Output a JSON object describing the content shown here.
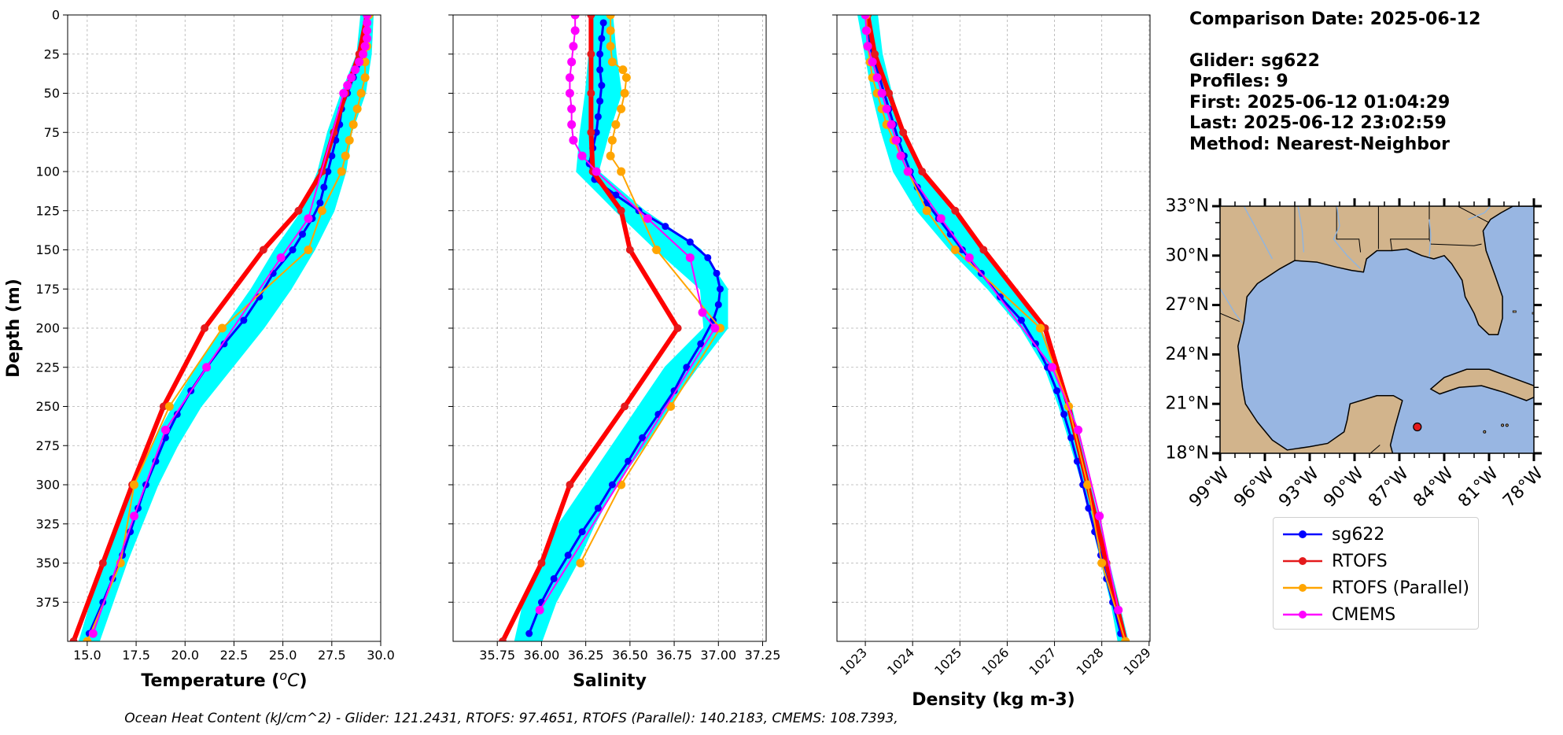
{
  "header": {
    "comparison_date": "Comparison Date: 2025-06-12",
    "glider": "Glider: sg622",
    "profiles": "Profiles: 9",
    "first": "First: 2025-06-12 01:04:29",
    "last": "Last: 2025-06-12 23:02:59",
    "method": "Method: Nearest-Neighbor"
  },
  "footer": "Ocean Heat Content (kJ/cm^2) - Glider: 121.2431,  RTOFS: 97.4651,  RTOFS (Parallel): 140.2183,  CMEMS: 108.7393,",
  "legend": {
    "items": [
      {
        "label": "sg622",
        "color": "#0000ff"
      },
      {
        "label": "RTOFS",
        "color": "#ff0000"
      },
      {
        "label": "RTOFS (Parallel)",
        "color": "#ffa500"
      },
      {
        "label": "CMEMS",
        "color": "#ff00ff"
      }
    ]
  },
  "map": {
    "lat_labels": [
      "33°N",
      "30°N",
      "27°N",
      "24°N",
      "21°N",
      "18°N"
    ],
    "lon_labels": [
      "99°W",
      "96°W",
      "93°W",
      "90°W",
      "87°W",
      "84°W",
      "81°W",
      "78°W"
    ],
    "land_color": "#d2b48c",
    "water_color": "#98b6e2",
    "glider_marker": {
      "lon": -85.8,
      "lat": 19.6,
      "color": "#e41a1c"
    }
  },
  "chart_data": [
    {
      "type": "line",
      "xlabel": "Temperature (°C)",
      "ylabel": "Depth (m)",
      "xlim": [
        14,
        30
      ],
      "ylim": [
        400,
        0
      ],
      "x_ticks": [
        15.0,
        17.5,
        20.0,
        22.5,
        25.0,
        27.5,
        30.0
      ],
      "x_tick_labels": [
        "15.0",
        "17.5",
        "20.0",
        "22.5",
        "25.0",
        "27.5",
        "30.0"
      ],
      "y_ticks": [
        0,
        25,
        50,
        75,
        100,
        125,
        150,
        175,
        200,
        225,
        250,
        275,
        300,
        325,
        350,
        375
      ],
      "y_tick_labels": [
        "0",
        "25",
        "50",
        "75",
        "100",
        "125",
        "150",
        "175",
        "200",
        "225",
        "250",
        "275",
        "300",
        "325",
        "350",
        "375"
      ],
      "grid": true,
      "envelope": {
        "color": "#00ffff",
        "depth": [
          0,
          25,
          50,
          75,
          100,
          125,
          150,
          175,
          200,
          225,
          250,
          275,
          300,
          325,
          350,
          375,
          400
        ],
        "min": [
          29.0,
          28.8,
          28.0,
          27.3,
          26.8,
          26.0,
          24.6,
          23.4,
          22.0,
          20.6,
          19.4,
          18.3,
          17.4,
          16.6,
          15.9,
          15.2,
          14.6
        ],
        "max": [
          29.6,
          29.5,
          29.2,
          28.5,
          28.2,
          27.6,
          26.6,
          25.4,
          24.0,
          22.4,
          20.8,
          19.6,
          18.6,
          17.8,
          17.0,
          16.3,
          15.6
        ]
      },
      "series": [
        {
          "name": "sg622",
          "color": "#0000ff",
          "width": 3,
          "marker": 4.5,
          "depth": [
            0,
            10,
            20,
            30,
            40,
            50,
            60,
            70,
            80,
            90,
            100,
            110,
            120,
            130,
            140,
            150,
            165,
            180,
            195,
            210,
            225,
            240,
            255,
            270,
            285,
            300,
            315,
            330,
            345,
            360,
            375,
            395
          ],
          "values": [
            29.3,
            29.3,
            29.2,
            29.0,
            28.6,
            28.3,
            28.0,
            27.9,
            27.7,
            27.5,
            27.3,
            27.1,
            26.9,
            26.5,
            26.0,
            25.5,
            24.5,
            23.8,
            23.0,
            22.0,
            21.1,
            20.3,
            19.6,
            19.0,
            18.5,
            18.0,
            17.6,
            17.2,
            16.8,
            16.3,
            15.8,
            15.1
          ]
        },
        {
          "name": "RTOFS",
          "color": "#ff0000",
          "width": 6,
          "marker": 5,
          "depth": [
            0,
            25,
            50,
            75,
            100,
            125,
            150,
            200,
            250,
            300,
            350,
            400
          ],
          "values": [
            29.3,
            28.9,
            28.2,
            27.6,
            27.0,
            25.8,
            24.0,
            21.0,
            18.9,
            17.3,
            15.8,
            14.3
          ]
        },
        {
          "name": "RTOFS (Parallel)",
          "color": "#ffa500",
          "width": 2,
          "marker": 5.5,
          "depth": [
            0,
            10,
            20,
            30,
            40,
            50,
            60,
            70,
            80,
            90,
            100,
            125,
            150,
            200,
            250,
            300,
            350,
            400
          ],
          "values": [
            29.4,
            29.3,
            29.3,
            29.2,
            29.2,
            29.0,
            28.8,
            28.6,
            28.4,
            28.2,
            28.0,
            27.0,
            26.3,
            21.9,
            19.2,
            17.4,
            16.7,
            15.0
          ]
        },
        {
          "name": "CMEMS",
          "color": "#ff00ff",
          "width": 2,
          "marker": 5.5,
          "depth": [
            0,
            5,
            10,
            15,
            20,
            25,
            30,
            35,
            40,
            45,
            50,
            130,
            155,
            225,
            265,
            320,
            395
          ],
          "values": [
            29.3,
            29.3,
            29.3,
            29.3,
            29.2,
            29.1,
            28.9,
            28.7,
            28.5,
            28.3,
            28.1,
            26.3,
            24.9,
            21.1,
            19.0,
            17.4,
            15.3
          ]
        }
      ]
    },
    {
      "type": "line",
      "xlabel": "Salinity",
      "ylim": [
        400,
        0
      ],
      "xlim": [
        35.5,
        37.27
      ],
      "x_ticks": [
        35.75,
        36.0,
        36.25,
        36.5,
        36.75,
        37.0,
        37.25
      ],
      "x_tick_labels": [
        "35.75",
        "36.00",
        "36.25",
        "36.50",
        "36.75",
        "37.00",
        "37.25"
      ],
      "y_ticks": [
        0,
        25,
        50,
        75,
        100,
        125,
        150,
        175,
        200,
        225,
        250,
        275,
        300,
        325,
        350,
        375
      ],
      "grid": true,
      "envelope": {
        "color": "#00ffff",
        "depth": [
          0,
          25,
          50,
          75,
          100,
          125,
          150,
          175,
          200,
          225,
          250,
          275,
          300,
          325,
          350,
          375,
          400
        ],
        "min": [
          36.3,
          36.27,
          36.25,
          36.22,
          36.2,
          36.42,
          36.65,
          36.9,
          36.92,
          36.7,
          36.55,
          36.4,
          36.25,
          36.1,
          36.0,
          35.9,
          35.85
        ],
        "max": [
          36.4,
          36.42,
          36.45,
          36.38,
          36.32,
          36.58,
          36.9,
          37.05,
          37.05,
          36.88,
          36.72,
          36.58,
          36.42,
          36.3,
          36.2,
          36.08,
          36.0
        ]
      },
      "series": [
        {
          "name": "sg622",
          "color": "#0000ff",
          "width": 3,
          "marker": 4.5,
          "depth": [
            5,
            15,
            25,
            35,
            45,
            55,
            65,
            75,
            85,
            95,
            105,
            115,
            125,
            135,
            145,
            155,
            165,
            175,
            185,
            195,
            210,
            225,
            240,
            255,
            270,
            285,
            300,
            315,
            330,
            345,
            360,
            375,
            395
          ],
          "values": [
            36.35,
            36.34,
            36.33,
            36.33,
            36.34,
            36.33,
            36.32,
            36.31,
            36.29,
            36.27,
            36.3,
            36.42,
            36.55,
            36.7,
            36.84,
            36.94,
            36.99,
            37.01,
            37.0,
            36.97,
            36.9,
            36.82,
            36.75,
            36.66,
            36.57,
            36.49,
            36.4,
            36.32,
            36.23,
            36.15,
            36.07,
            36.0,
            35.93
          ]
        },
        {
          "name": "RTOFS",
          "color": "#ff0000",
          "width": 6,
          "marker": 5,
          "depth": [
            0,
            25,
            50,
            75,
            100,
            125,
            150,
            200,
            250,
            300,
            350,
            400
          ],
          "values": [
            36.28,
            36.28,
            36.28,
            36.28,
            36.29,
            36.45,
            36.5,
            36.77,
            36.47,
            36.16,
            36.0,
            35.78
          ]
        },
        {
          "name": "RTOFS (Parallel)",
          "color": "#ffa500",
          "width": 2,
          "marker": 5.5,
          "depth": [
            0,
            10,
            20,
            30,
            35,
            40,
            50,
            60,
            70,
            80,
            90,
            100,
            150,
            200,
            250,
            300,
            350
          ],
          "values": [
            36.39,
            36.39,
            36.39,
            36.4,
            36.46,
            36.48,
            36.47,
            36.45,
            36.42,
            36.4,
            36.39,
            36.45,
            36.65,
            37.01,
            36.73,
            36.45,
            36.22
          ]
        },
        {
          "name": "CMEMS",
          "color": "#ff00ff",
          "width": 2,
          "marker": 5.5,
          "depth": [
            0,
            10,
            20,
            30,
            40,
            50,
            60,
            70,
            80,
            90,
            100,
            130,
            155,
            190,
            200,
            380
          ],
          "values": [
            36.19,
            36.19,
            36.18,
            36.17,
            36.16,
            36.16,
            36.17,
            36.17,
            36.18,
            36.23,
            36.31,
            36.6,
            36.84,
            36.91,
            36.98,
            35.99
          ]
        }
      ]
    },
    {
      "type": "line",
      "xlabel": "Density (kg m-3)",
      "ylim": [
        400,
        0
      ],
      "xlim": [
        1022.4,
        1029.02
      ],
      "x_ticks": [
        1023,
        1024,
        1025,
        1026,
        1027,
        1028,
        1029
      ],
      "x_tick_labels": [
        "1023",
        "1024",
        "1025",
        "1026",
        "1027",
        "1028",
        "1029"
      ],
      "y_ticks": [
        0,
        25,
        50,
        75,
        100,
        125,
        150,
        175,
        200,
        225,
        250,
        275,
        300,
        325,
        350,
        375
      ],
      "grid": true,
      "envelope": {
        "color": "#00ffff",
        "depth": [
          0,
          25,
          50,
          75,
          100,
          125,
          150,
          175,
          200,
          225,
          250,
          275,
          300,
          325,
          350,
          375,
          400
        ],
        "min": [
          1022.85,
          1023.0,
          1023.15,
          1023.35,
          1023.6,
          1024.1,
          1024.8,
          1025.6,
          1026.3,
          1026.8,
          1027.1,
          1027.35,
          1027.6,
          1027.8,
          1028.0,
          1028.2,
          1028.35
        ],
        "max": [
          1023.25,
          1023.35,
          1023.55,
          1023.8,
          1024.2,
          1024.8,
          1025.5,
          1026.1,
          1026.7,
          1027.05,
          1027.35,
          1027.55,
          1027.75,
          1027.95,
          1028.15,
          1028.35,
          1028.55
        ]
      },
      "series": [
        {
          "name": "sg622",
          "color": "#0000ff",
          "width": 3,
          "marker": 4.5,
          "depth": [
            0,
            10,
            20,
            30,
            40,
            50,
            60,
            70,
            80,
            90,
            100,
            110,
            120,
            130,
            140,
            150,
            165,
            180,
            195,
            210,
            225,
            240,
            255,
            270,
            285,
            300,
            315,
            330,
            345,
            360,
            375,
            395
          ],
          "values": [
            1023.05,
            1023.07,
            1023.1,
            1023.2,
            1023.3,
            1023.4,
            1023.5,
            1023.6,
            1023.7,
            1023.82,
            1023.95,
            1024.1,
            1024.3,
            1024.55,
            1024.8,
            1025.05,
            1025.45,
            1025.85,
            1026.3,
            1026.6,
            1026.85,
            1027.05,
            1027.2,
            1027.35,
            1027.48,
            1027.6,
            1027.72,
            1027.85,
            1027.98,
            1028.1,
            1028.23,
            1028.4
          ]
        },
        {
          "name": "RTOFS",
          "color": "#ff0000",
          "width": 6,
          "marker": 5,
          "depth": [
            0,
            25,
            50,
            75,
            100,
            125,
            150,
            200,
            250,
            300,
            350,
            400
          ],
          "values": [
            1023.05,
            1023.2,
            1023.5,
            1023.8,
            1024.2,
            1024.9,
            1025.5,
            1026.8,
            1027.3,
            1027.7,
            1028.1,
            1028.5
          ]
        },
        {
          "name": "RTOFS (Parallel)",
          "color": "#ffa500",
          "width": 2,
          "marker": 5.5,
          "depth": [
            0,
            10,
            20,
            30,
            40,
            50,
            60,
            70,
            80,
            90,
            100,
            125,
            150,
            200,
            250,
            300,
            350,
            400
          ],
          "values": [
            1023.02,
            1023.03,
            1023.05,
            1023.1,
            1023.15,
            1023.25,
            1023.35,
            1023.45,
            1023.6,
            1023.75,
            1023.9,
            1024.3,
            1024.9,
            1026.7,
            1027.3,
            1027.7,
            1028.0,
            1028.5
          ]
        },
        {
          "name": "CMEMS",
          "color": "#ff00ff",
          "width": 2,
          "marker": 5.5,
          "depth": [
            0,
            10,
            20,
            30,
            40,
            50,
            60,
            70,
            80,
            90,
            100,
            130,
            155,
            225,
            265,
            320,
            380
          ],
          "values": [
            1023.0,
            1023.02,
            1023.05,
            1023.15,
            1023.25,
            1023.35,
            1023.45,
            1023.55,
            1023.65,
            1023.75,
            1023.9,
            1024.6,
            1025.2,
            1026.95,
            1027.5,
            1027.95,
            1028.35
          ]
        }
      ]
    }
  ]
}
